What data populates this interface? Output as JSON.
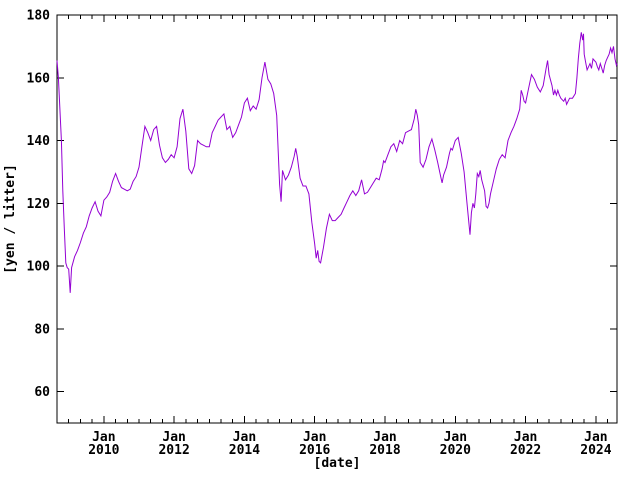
{
  "chart_data": {
    "type": "line",
    "title": "",
    "xlabel": "[date]",
    "ylabel": "[yen / litter]",
    "x_unit": "decimal_year",
    "xlim": [
      2008.667,
      2024.6
    ],
    "ylim": [
      50,
      180
    ],
    "yticks": [
      60,
      80,
      100,
      120,
      140,
      160,
      180
    ],
    "x_major_ticks": [
      {
        "month": "Jan",
        "year": "2010",
        "t": 2010
      },
      {
        "month": "Jan",
        "year": "2012",
        "t": 2012
      },
      {
        "month": "Jan",
        "year": "2014",
        "t": 2014
      },
      {
        "month": "Jan",
        "year": "2016",
        "t": 2016
      },
      {
        "month": "Jan",
        "year": "2018",
        "t": 2018
      },
      {
        "month": "Jan",
        "year": "2020",
        "t": 2020
      },
      {
        "month": "Jan",
        "year": "2022",
        "t": 2022
      },
      {
        "month": "Jan",
        "year": "2024",
        "t": 2024
      }
    ],
    "x_minor_tick_interval_months": 4,
    "grid": false,
    "legend_position": "none",
    "background_color": "#ffffff",
    "border_color": "#000000",
    "line_color": "#9400D3",
    "series": [
      {
        "points": [
          [
            2008.667,
            165.5
          ],
          [
            2008.708,
            160
          ],
          [
            2008.75,
            150
          ],
          [
            2008.792,
            140
          ],
          [
            2008.833,
            124
          ],
          [
            2008.875,
            112
          ],
          [
            2008.917,
            101
          ],
          [
            2008.958,
            99.5
          ],
          [
            2009.0,
            99
          ],
          [
            2009.042,
            91.5
          ],
          [
            2009.083,
            99.5
          ],
          [
            2009.167,
            103
          ],
          [
            2009.25,
            105
          ],
          [
            2009.333,
            107.5
          ],
          [
            2009.417,
            110.5
          ],
          [
            2009.5,
            112.5
          ],
          [
            2009.583,
            116
          ],
          [
            2009.667,
            118.5
          ],
          [
            2009.75,
            120.5
          ],
          [
            2009.833,
            117.5
          ],
          [
            2009.917,
            116
          ],
          [
            2010.0,
            121
          ],
          [
            2010.083,
            122
          ],
          [
            2010.167,
            123.5
          ],
          [
            2010.25,
            127
          ],
          [
            2010.333,
            129.5
          ],
          [
            2010.417,
            127
          ],
          [
            2010.5,
            125
          ],
          [
            2010.583,
            124.5
          ],
          [
            2010.667,
            124
          ],
          [
            2010.75,
            124.5
          ],
          [
            2010.833,
            127
          ],
          [
            2010.917,
            128.5
          ],
          [
            2011.0,
            131.5
          ],
          [
            2011.083,
            138
          ],
          [
            2011.167,
            144.5
          ],
          [
            2011.25,
            142.5
          ],
          [
            2011.333,
            140
          ],
          [
            2011.417,
            143.5
          ],
          [
            2011.5,
            144.5
          ],
          [
            2011.583,
            138.5
          ],
          [
            2011.667,
            134.5
          ],
          [
            2011.75,
            133
          ],
          [
            2011.833,
            134
          ],
          [
            2011.917,
            135.5
          ],
          [
            2012.0,
            134.5
          ],
          [
            2012.083,
            138
          ],
          [
            2012.167,
            147
          ],
          [
            2012.25,
            150
          ],
          [
            2012.333,
            143
          ],
          [
            2012.417,
            131
          ],
          [
            2012.5,
            129.5
          ],
          [
            2012.583,
            132
          ],
          [
            2012.667,
            140
          ],
          [
            2012.75,
            139
          ],
          [
            2012.833,
            138.5
          ],
          [
            2012.917,
            138
          ],
          [
            2013.0,
            138
          ],
          [
            2013.083,
            142.5
          ],
          [
            2013.167,
            144.5
          ],
          [
            2013.25,
            146.5
          ],
          [
            2013.333,
            147.5
          ],
          [
            2013.417,
            148.5
          ],
          [
            2013.5,
            143.5
          ],
          [
            2013.583,
            144.5
          ],
          [
            2013.667,
            141
          ],
          [
            2013.75,
            142.5
          ],
          [
            2013.833,
            145
          ],
          [
            2013.917,
            147.5
          ],
          [
            2014.0,
            152
          ],
          [
            2014.083,
            153.5
          ],
          [
            2014.167,
            149.5
          ],
          [
            2014.25,
            151
          ],
          [
            2014.333,
            150
          ],
          [
            2014.417,
            153
          ],
          [
            2014.5,
            160
          ],
          [
            2014.583,
            165
          ],
          [
            2014.667,
            159.5
          ],
          [
            2014.75,
            158
          ],
          [
            2014.833,
            155
          ],
          [
            2014.917,
            148
          ],
          [
            2015.0,
            126
          ],
          [
            2015.042,
            120.5
          ],
          [
            2015.083,
            130.5
          ],
          [
            2015.167,
            127.5
          ],
          [
            2015.25,
            129
          ],
          [
            2015.333,
            131.5
          ],
          [
            2015.417,
            135
          ],
          [
            2015.458,
            137.5
          ],
          [
            2015.5,
            135
          ],
          [
            2015.583,
            128
          ],
          [
            2015.667,
            125.5
          ],
          [
            2015.75,
            125.5
          ],
          [
            2015.833,
            123
          ],
          [
            2015.917,
            114
          ],
          [
            2016.0,
            107
          ],
          [
            2016.042,
            102.5
          ],
          [
            2016.083,
            105
          ],
          [
            2016.125,
            101.5
          ],
          [
            2016.167,
            101
          ],
          [
            2016.25,
            106
          ],
          [
            2016.333,
            112
          ],
          [
            2016.417,
            116.5
          ],
          [
            2016.5,
            114.5
          ],
          [
            2016.583,
            114.5
          ],
          [
            2016.667,
            115.5
          ],
          [
            2016.75,
            116.5
          ],
          [
            2016.833,
            118.5
          ],
          [
            2016.917,
            120.5
          ],
          [
            2017.0,
            122.5
          ],
          [
            2017.083,
            124
          ],
          [
            2017.167,
            122.5
          ],
          [
            2017.25,
            124
          ],
          [
            2017.333,
            127.5
          ],
          [
            2017.417,
            123
          ],
          [
            2017.5,
            123.5
          ],
          [
            2017.583,
            125
          ],
          [
            2017.667,
            126.5
          ],
          [
            2017.75,
            128
          ],
          [
            2017.833,
            127.5
          ],
          [
            2017.917,
            131
          ],
          [
            2017.958,
            133.5
          ],
          [
            2018.0,
            133
          ],
          [
            2018.083,
            135.5
          ],
          [
            2018.167,
            138
          ],
          [
            2018.25,
            139
          ],
          [
            2018.333,
            136.5
          ],
          [
            2018.417,
            140
          ],
          [
            2018.5,
            139
          ],
          [
            2018.583,
            142.5
          ],
          [
            2018.667,
            143
          ],
          [
            2018.75,
            143.5
          ],
          [
            2018.833,
            147
          ],
          [
            2018.875,
            150
          ],
          [
            2018.917,
            148
          ],
          [
            2018.958,
            145
          ],
          [
            2019.0,
            133
          ],
          [
            2019.083,
            131.5
          ],
          [
            2019.167,
            134
          ],
          [
            2019.25,
            138
          ],
          [
            2019.333,
            140.5
          ],
          [
            2019.417,
            137
          ],
          [
            2019.5,
            133
          ],
          [
            2019.583,
            128.5
          ],
          [
            2019.625,
            126.5
          ],
          [
            2019.667,
            129
          ],
          [
            2019.75,
            131.5
          ],
          [
            2019.833,
            136
          ],
          [
            2019.875,
            137.5
          ],
          [
            2019.917,
            137
          ],
          [
            2020.0,
            140
          ],
          [
            2020.083,
            141
          ],
          [
            2020.167,
            136
          ],
          [
            2020.25,
            130
          ],
          [
            2020.333,
            120
          ],
          [
            2020.417,
            110
          ],
          [
            2020.458,
            117
          ],
          [
            2020.5,
            120
          ],
          [
            2020.542,
            118.5
          ],
          [
            2020.583,
            123
          ],
          [
            2020.625,
            129.5
          ],
          [
            2020.667,
            128.5
          ],
          [
            2020.708,
            130.5
          ],
          [
            2020.75,
            127.5
          ],
          [
            2020.833,
            124
          ],
          [
            2020.875,
            119
          ],
          [
            2020.917,
            118.5
          ],
          [
            2020.958,
            120
          ],
          [
            2021.0,
            123
          ],
          [
            2021.083,
            127
          ],
          [
            2021.167,
            131
          ],
          [
            2021.25,
            134
          ],
          [
            2021.333,
            135.5
          ],
          [
            2021.417,
            134.5
          ],
          [
            2021.5,
            140
          ],
          [
            2021.583,
            142.5
          ],
          [
            2021.667,
            144.5
          ],
          [
            2021.75,
            147
          ],
          [
            2021.833,
            150
          ],
          [
            2021.875,
            156
          ],
          [
            2021.917,
            154.5
          ],
          [
            2021.958,
            152.5
          ],
          [
            2022.0,
            152
          ],
          [
            2022.083,
            156.5
          ],
          [
            2022.167,
            161
          ],
          [
            2022.25,
            159.5
          ],
          [
            2022.333,
            157
          ],
          [
            2022.417,
            155.5
          ],
          [
            2022.5,
            157.5
          ],
          [
            2022.583,
            163
          ],
          [
            2022.625,
            165.5
          ],
          [
            2022.667,
            161
          ],
          [
            2022.75,
            157.5
          ],
          [
            2022.792,
            154.5
          ],
          [
            2022.833,
            156
          ],
          [
            2022.875,
            154.5
          ],
          [
            2022.917,
            156
          ],
          [
            2022.958,
            154.5
          ],
          [
            2023.0,
            153.5
          ],
          [
            2023.083,
            152.5
          ],
          [
            2023.125,
            153.5
          ],
          [
            2023.167,
            151.5
          ],
          [
            2023.25,
            153.5
          ],
          [
            2023.333,
            153.5
          ],
          [
            2023.417,
            155
          ],
          [
            2023.458,
            160
          ],
          [
            2023.5,
            166
          ],
          [
            2023.542,
            171
          ],
          [
            2023.583,
            174.5
          ],
          [
            2023.625,
            172
          ],
          [
            2023.646,
            174
          ],
          [
            2023.667,
            167.5
          ],
          [
            2023.708,
            165
          ],
          [
            2023.75,
            162.5
          ],
          [
            2023.833,
            164.5
          ],
          [
            2023.875,
            163
          ],
          [
            2023.917,
            166
          ],
          [
            2023.958,
            165.5
          ],
          [
            2024.0,
            165
          ],
          [
            2024.042,
            163.5
          ],
          [
            2024.083,
            162.5
          ],
          [
            2024.125,
            164.5
          ],
          [
            2024.167,
            163
          ],
          [
            2024.208,
            161.5
          ],
          [
            2024.25,
            164
          ],
          [
            2024.292,
            165.5
          ],
          [
            2024.333,
            166.5
          ],
          [
            2024.375,
            167.5
          ],
          [
            2024.417,
            169.5
          ],
          [
            2024.458,
            168
          ],
          [
            2024.5,
            170
          ],
          [
            2024.542,
            166
          ],
          [
            2024.583,
            164
          ],
          [
            2024.6,
            164.5
          ]
        ]
      }
    ]
  }
}
